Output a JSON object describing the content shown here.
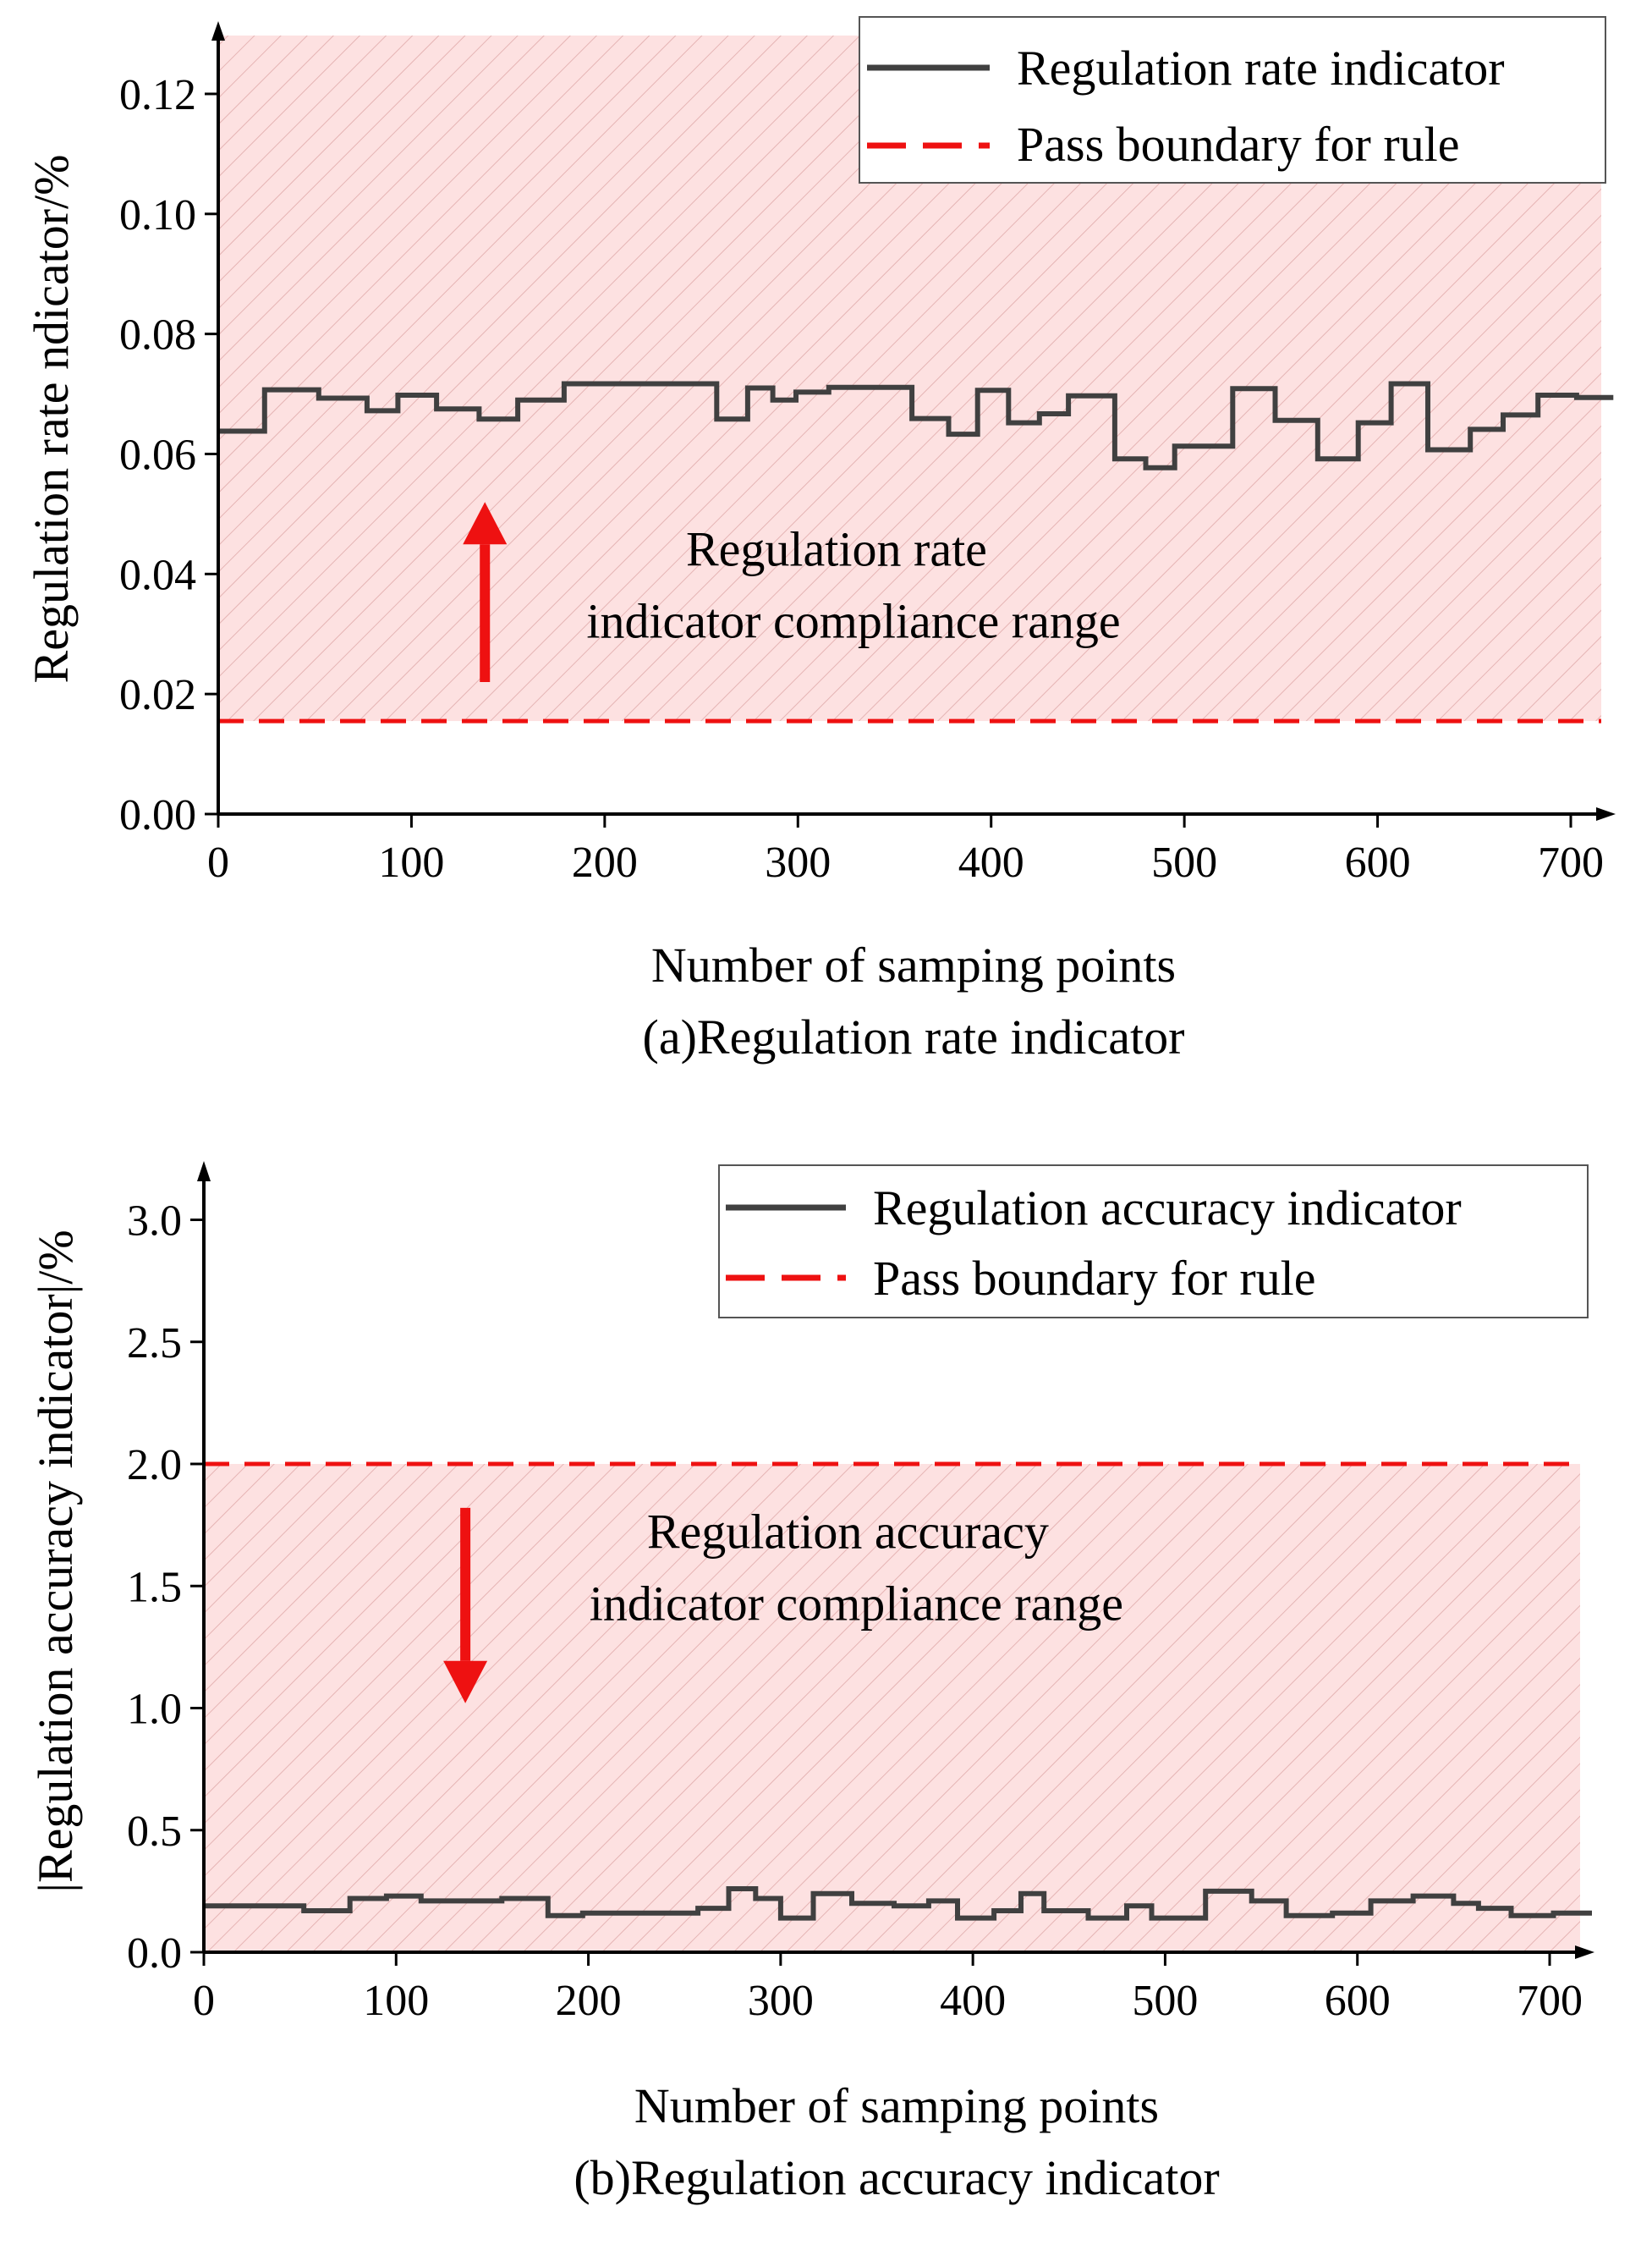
{
  "chart_data": [
    {
      "type": "line",
      "panel": "a",
      "caption": "(a)Regulation rate indicator",
      "xlabel": "Number of samping points",
      "ylabel": "Regulation rate ndicator/%",
      "xlim": [
        0,
        730
      ],
      "ylim": [
        0,
        0.13
      ],
      "xticks": [
        0,
        100,
        200,
        300,
        400,
        500,
        600,
        700
      ],
      "xtick_labels": [
        "0",
        "100",
        "200",
        "300",
        "400",
        "500",
        "600",
        "700"
      ],
      "yticks": [
        0,
        0.02,
        0.04,
        0.06,
        0.08,
        0.1,
        0.12
      ],
      "ytick_labels": [
        "0.00",
        "0.02",
        "0.04",
        "0.06",
        "0.08",
        "0.10",
        "0.12"
      ],
      "compliance_side": "above",
      "boundary": {
        "name": "Pass boundary for rule",
        "value": 0.0155,
        "color": "#ee1111"
      },
      "annotation": {
        "line1": "Regulation rate",
        "line2": "indicator compliance range",
        "x": 320,
        "y": 0.04,
        "arrow_from": 0.022,
        "arrow_to": 0.052,
        "arrow_x": 138
      },
      "legend": {
        "position": "top-right",
        "entries": [
          "Regulation rate indicator",
          "Pass boundary for rule"
        ]
      },
      "series": [
        {
          "name": "Regulation rate indicator",
          "color": "#404040",
          "x": [
            0,
            24,
            24,
            52,
            52,
            77,
            77,
            93,
            93,
            113,
            113,
            135,
            135,
            155,
            155,
            179,
            179,
            258,
            258,
            274,
            274,
            287,
            287,
            299,
            299,
            316,
            316,
            359,
            359,
            378,
            378,
            393,
            393,
            409,
            409,
            425,
            425,
            440,
            440,
            464,
            464,
            480,
            480,
            495,
            495,
            525,
            525,
            547,
            547,
            569,
            569,
            590,
            590,
            607,
            607,
            626,
            626,
            648,
            648,
            665,
            665,
            683,
            683,
            703,
            703,
            722
          ],
          "y": [
            0.0638,
            0.0638,
            0.0707,
            0.0707,
            0.0693,
            0.0693,
            0.0672,
            0.0672,
            0.0698,
            0.0698,
            0.0675,
            0.0675,
            0.0658,
            0.0658,
            0.069,
            0.069,
            0.0717,
            0.0717,
            0.0658,
            0.0658,
            0.071,
            0.071,
            0.069,
            0.069,
            0.0703,
            0.0703,
            0.0711,
            0.0711,
            0.0659,
            0.0659,
            0.0633,
            0.0633,
            0.0706,
            0.0706,
            0.0652,
            0.0652,
            0.0667,
            0.0667,
            0.0697,
            0.0697,
            0.0592,
            0.0592,
            0.0577,
            0.0577,
            0.0613,
            0.0613,
            0.0709,
            0.0709,
            0.0656,
            0.0656,
            0.0592,
            0.0592,
            0.0652,
            0.0652,
            0.0717,
            0.0717,
            0.0607,
            0.0607,
            0.0641,
            0.0641,
            0.0665,
            0.0665,
            0.0698,
            0.0698,
            0.0694,
            0.0694
          ]
        }
      ]
    },
    {
      "type": "line",
      "panel": "b",
      "caption": "(b)Regulation accuracy indicator",
      "xlabel": "Number of samping points",
      "ylabel": "|Regulation accuracy indicator|/%",
      "xlim": [
        0,
        730
      ],
      "ylim": [
        0,
        3.2
      ],
      "xticks": [
        0,
        100,
        200,
        300,
        400,
        500,
        600,
        700
      ],
      "xtick_labels": [
        "0",
        "100",
        "200",
        "300",
        "400",
        "500",
        "600",
        "700"
      ],
      "yticks": [
        0,
        0.5,
        1.0,
        1.5,
        2.0,
        2.5,
        3.0
      ],
      "ytick_labels": [
        "0.0",
        "0.5",
        "1.0",
        "1.5",
        "2.0",
        "2.5",
        "3.0"
      ],
      "compliance_side": "below",
      "boundary": {
        "name": "Pass boundary for rule",
        "value": 2.0,
        "color": "#ee1111"
      },
      "annotation": {
        "line1": "Regulation accuracy",
        "line2": "indicator compliance range",
        "x": 335,
        "y": 1.62,
        "arrow_from": 1.82,
        "arrow_to": 1.02,
        "arrow_x": 136
      },
      "legend": {
        "position": "top-right",
        "entries": [
          "Regulation accuracy indicator",
          "Pass boundary for rule"
        ]
      },
      "series": [
        {
          "name": "Regulation accuracy indicator",
          "color": "#404040",
          "x": [
            0,
            52,
            52,
            76,
            76,
            95,
            95,
            113,
            113,
            155,
            155,
            179,
            179,
            197,
            197,
            257,
            257,
            273,
            273,
            287,
            287,
            300,
            300,
            317,
            317,
            337,
            337,
            359,
            359,
            377,
            377,
            392,
            392,
            411,
            411,
            425,
            425,
            437,
            437,
            460,
            460,
            480,
            480,
            493,
            493,
            521,
            521,
            545,
            545,
            563,
            563,
            587,
            587,
            607,
            607,
            629,
            629,
            650,
            650,
            663,
            663,
            680,
            680,
            702,
            702,
            722
          ],
          "y": [
            0.19,
            0.19,
            0.17,
            0.17,
            0.22,
            0.22,
            0.23,
            0.23,
            0.21,
            0.21,
            0.22,
            0.22,
            0.15,
            0.15,
            0.16,
            0.16,
            0.18,
            0.18,
            0.26,
            0.26,
            0.22,
            0.22,
            0.14,
            0.14,
            0.24,
            0.24,
            0.2,
            0.2,
            0.19,
            0.19,
            0.21,
            0.21,
            0.14,
            0.14,
            0.17,
            0.17,
            0.24,
            0.24,
            0.17,
            0.17,
            0.14,
            0.14,
            0.19,
            0.19,
            0.14,
            0.14,
            0.25,
            0.25,
            0.21,
            0.21,
            0.15,
            0.15,
            0.16,
            0.16,
            0.21,
            0.21,
            0.23,
            0.23,
            0.2,
            0.2,
            0.18,
            0.18,
            0.15,
            0.15,
            0.16,
            0.16
          ]
        }
      ]
    }
  ]
}
